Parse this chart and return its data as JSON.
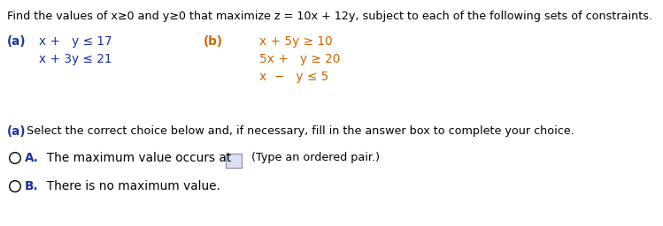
{
  "bg_color": "#ffffff",
  "black": "#000000",
  "blue": "#1a3399",
  "orange": "#cc6600",
  "gray_line": "#bbbbbb",
  "title": "Find the values of x≥0 and y≥0 that maximize z = 10x + 12y, subject to each of the following sets of constraints.",
  "a_label": "(a)",
  "a_line1_indent": "x +   y ≤ 17",
  "a_line2_indent": "x + 3y ≤ 21",
  "b_label": "(b)",
  "b_line1": "x + 5y ≥ 10",
  "b_line2": "5x +   y ≥ 20",
  "b_line3": "x  −   y ≤ 5",
  "bottom_header_bold": "(a)",
  "bottom_header_rest": " Select the correct choice below and, if necessary, fill in the answer box to complete your choice.",
  "choiceA_letter": "A.",
  "choiceA_text": "  The maximum value occurs at",
  "choiceA_hint": "  (Type an ordered pair.)",
  "choiceB_letter": "B.",
  "choiceB_text": "  There is no maximum value.",
  "title_fs": 9.2,
  "body_fs": 9.8,
  "small_fs": 9.2,
  "bold_fs": 9.8
}
